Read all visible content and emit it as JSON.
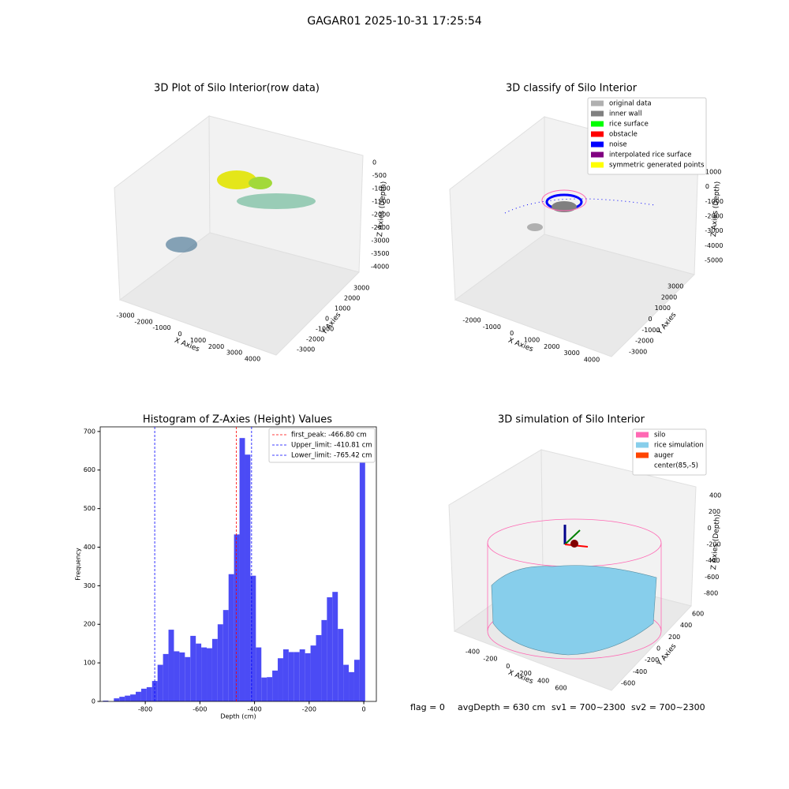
{
  "suptitle": "GAGAR01 2025-10-31 17:25:54",
  "footer": [
    "flag = 0",
    "avgDepth = 630 cm",
    "sv1 = 700~2300",
    "sv2 = 700~2300"
  ],
  "chart_data": [
    {
      "type": "scatter3d",
      "title": "3D Plot of Silo Interior(row data)",
      "xlabel": "X Axies",
      "ylabel": "Y Axies",
      "zlabel": "Z Axies (Depth)",
      "xticks": [
        -3000,
        -2000,
        -1000,
        0,
        1000,
        2000,
        3000,
        4000
      ],
      "yticks": [
        -3000,
        -2000,
        -1000,
        0,
        1000,
        2000,
        3000
      ],
      "zticks": [
        0,
        -500,
        -1000,
        -1500,
        -2000,
        -2500,
        -3000,
        -3500,
        -4000
      ]
    },
    {
      "type": "scatter3d",
      "title": "3D classify of Silo Interior",
      "xlabel": "X Axies",
      "ylabel": "Y Axies",
      "zlabel": "Z Axies (Depth)",
      "xticks": [
        -2000,
        -1000,
        0,
        1000,
        2000,
        3000,
        4000
      ],
      "yticks": [
        -3000,
        -2000,
        -1000,
        0,
        1000,
        2000,
        3000
      ],
      "zticks": [
        1000,
        0,
        -1000,
        -2000,
        -3000,
        -4000,
        -5000
      ],
      "legend": [
        {
          "name": "original data",
          "color": "#b0b0b0"
        },
        {
          "name": "inner wall",
          "color": "#808080"
        },
        {
          "name": "rice surface",
          "color": "#00ff00"
        },
        {
          "name": "obstacle",
          "color": "#ff0000"
        },
        {
          "name": "noise",
          "color": "#0000ff"
        },
        {
          "name": "interpolated rice surface",
          "color": "#800080"
        },
        {
          "name": "symmetric generated points",
          "color": "#ffff00"
        }
      ]
    },
    {
      "type": "histogram",
      "title": "Histogram of Z-Axies (Height) Values",
      "xlabel": "Depth (cm)",
      "ylabel": "Frequency",
      "color": "#4b4bf5",
      "bins": [
        -955,
        -935,
        -915,
        -895,
        -875,
        -855,
        -835,
        -815,
        -795,
        -775,
        -755,
        -735,
        -715,
        -695,
        -675,
        -655,
        -635,
        -615,
        -595,
        -575,
        -555,
        -535,
        -515,
        -495,
        -475,
        -455,
        -435,
        -415,
        -395,
        -375,
        -355,
        -335,
        -315,
        -295,
        -275,
        -255,
        -235,
        -215,
        -195,
        -175,
        -155,
        -135,
        -115,
        -95,
        -75,
        -55,
        -35,
        -15,
        5
      ],
      "counts": [
        2,
        0,
        8,
        12,
        15,
        18,
        25,
        33,
        37,
        53,
        95,
        123,
        186,
        130,
        127,
        115,
        170,
        150,
        140,
        138,
        162,
        200,
        237,
        330,
        433,
        683,
        640,
        326,
        140,
        62,
        63,
        80,
        112,
        135,
        128,
        128,
        135,
        125,
        145,
        172,
        211,
        270,
        284,
        188,
        95,
        76,
        108,
        638
      ],
      "xlim": [
        -965,
        46
      ],
      "ylim": [
        0,
        712
      ],
      "xticks": [
        -800,
        -600,
        -400,
        -200,
        0
      ],
      "yticks": [
        0,
        100,
        200,
        300,
        400,
        500,
        600,
        700
      ],
      "vlines": [
        {
          "label": "first_peak: -466.80 cm",
          "value": -466.8,
          "color": "#ff0000"
        },
        {
          "label": "Upper_limit: -410.81 cm",
          "value": -410.81,
          "color": "#0000ff"
        },
        {
          "label": "Lower_limit: -765.42 cm",
          "value": -765.42,
          "color": "#0000ff"
        }
      ]
    },
    {
      "type": "surface3d",
      "title": "3D simulation of Silo Interior",
      "xlabel": "X Axies",
      "ylabel": "Y Axies",
      "zlabel": "Z Axies (Depth)",
      "xticks": [
        -400,
        -200,
        0,
        200,
        400,
        600
      ],
      "yticks": [
        -600,
        -400,
        -200,
        0,
        200,
        400,
        600
      ],
      "zticks": [
        400,
        200,
        0,
        -200,
        -400,
        -600,
        -800
      ],
      "legend": [
        {
          "name": "silo",
          "color": "#ff69b4"
        },
        {
          "name": "rice simulation",
          "color": "#87ceeb"
        },
        {
          "name": "auger",
          "color": "#ff4500"
        },
        {
          "name": "center(85,-5)",
          "color": "#ffffff"
        }
      ]
    }
  ]
}
